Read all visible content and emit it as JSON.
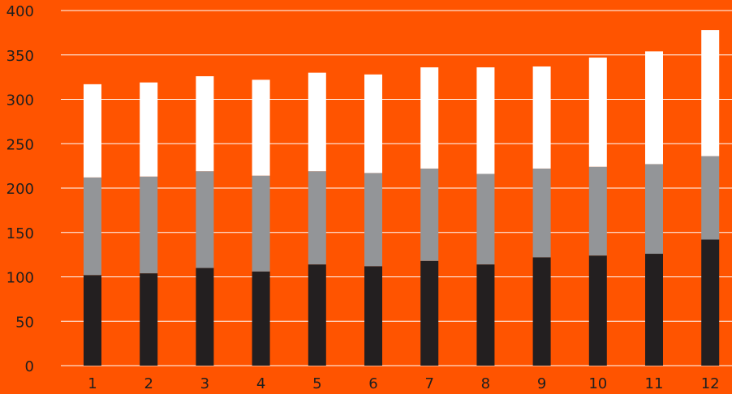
{
  "colors": {
    "background": "#FF5400",
    "grid": "#FFFFFF",
    "text": "#1F1F1F"
  },
  "chart_data": {
    "type": "bar",
    "stacked": true,
    "title": "",
    "xlabel": "",
    "ylabel": "",
    "ylim": [
      0,
      400
    ],
    "yticks": [
      0,
      50,
      100,
      150,
      200,
      250,
      300,
      350,
      400
    ],
    "grid": true,
    "legend": "none",
    "categories": [
      "1",
      "2",
      "3",
      "4",
      "5",
      "6",
      "7",
      "8",
      "9",
      "10",
      "11",
      "12"
    ],
    "series": [
      {
        "color": "#231F20",
        "values": [
          102,
          104,
          110,
          106,
          114,
          112,
          118,
          114,
          122,
          124,
          126,
          142
        ]
      },
      {
        "color": "#939598",
        "values": [
          110,
          109,
          109,
          108,
          105,
          105,
          104,
          102,
          100,
          100,
          101,
          94
        ]
      },
      {
        "color": "#FFFFFF",
        "values": [
          105,
          106,
          107,
          108,
          111,
          111,
          114,
          120,
          115,
          123,
          127,
          142
        ]
      }
    ]
  }
}
